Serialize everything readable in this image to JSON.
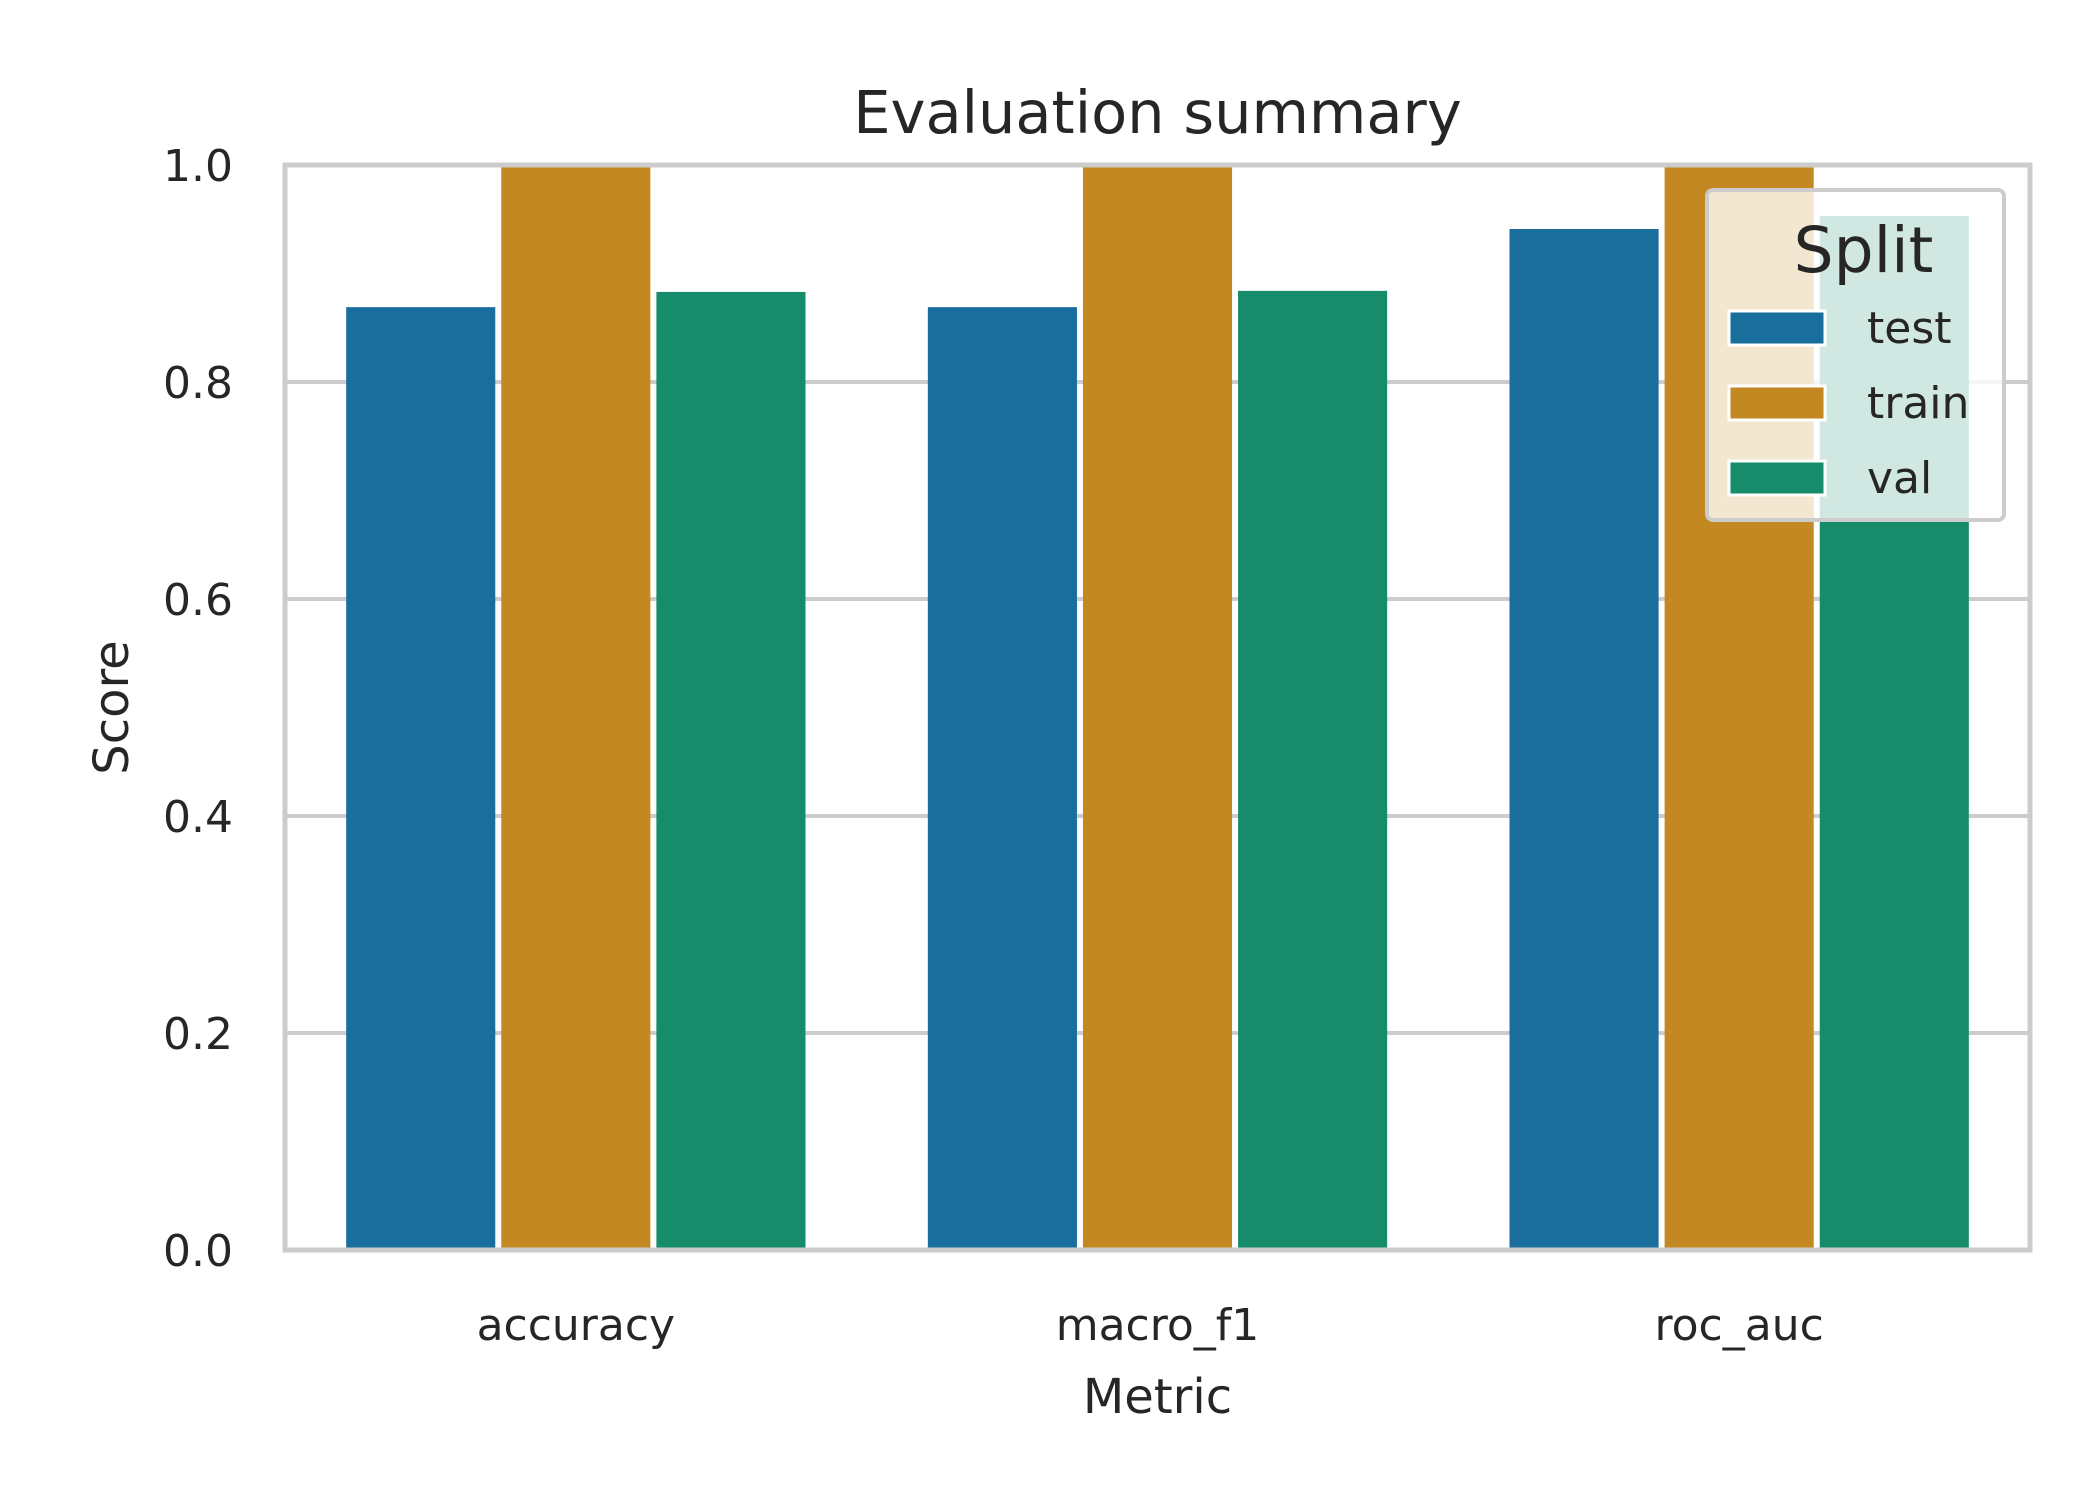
{
  "chart_data": {
    "type": "bar",
    "title": "Evaluation summary",
    "xlabel": "Metric",
    "ylabel": "Score",
    "ylim": [
      0,
      1.0
    ],
    "yticks": [
      "0.0",
      "0.2",
      "0.4",
      "0.6",
      "0.8",
      "1.0"
    ],
    "categories": [
      "accuracy",
      "macro_f1",
      "roc_auc"
    ],
    "series": [
      {
        "name": "test",
        "color": "#1a6e9d",
        "values": [
          0.869,
          0.869,
          0.941
        ]
      },
      {
        "name": "train",
        "color": "#c38821",
        "values": [
          1.0,
          1.0,
          1.0
        ]
      },
      {
        "name": "val",
        "color": "#168c6b",
        "values": [
          0.883,
          0.884,
          0.953
        ]
      }
    ],
    "legend": {
      "title": "Split",
      "placement": "upper right"
    },
    "grid": "horizontal"
  }
}
